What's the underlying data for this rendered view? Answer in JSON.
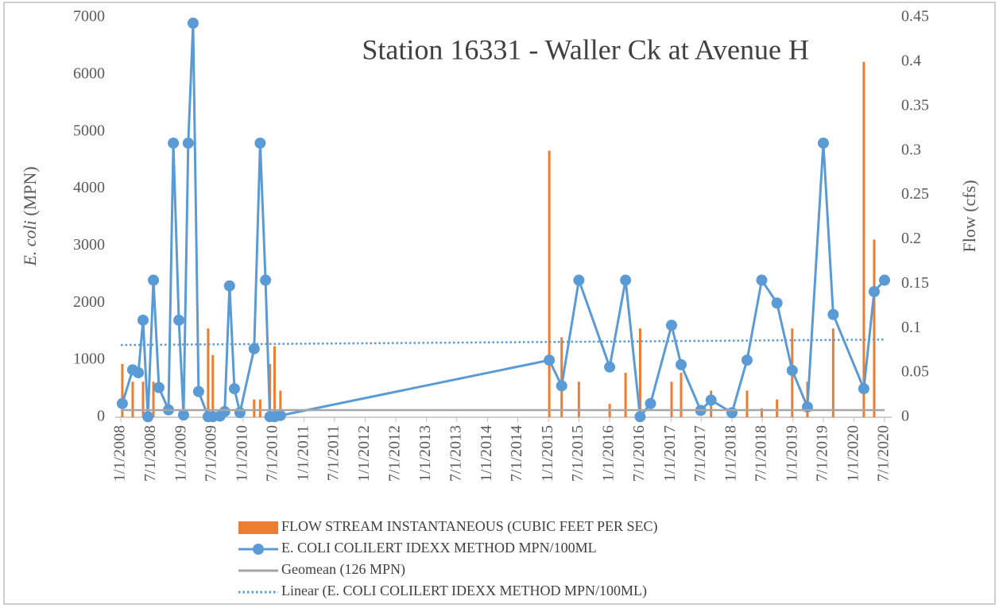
{
  "chart_data": {
    "type": "combo",
    "title": "Station 16331 - Waller Ck at Avenue H",
    "y_label": [
      "E. coli",
      "(MPN)"
    ],
    "y2_label": "Flow (cfs)",
    "xlim": [
      "2008-01-01",
      "2020-07-01"
    ],
    "xticks": [
      {
        "value": "2008-01-01",
        "label": "1/1/2008"
      },
      {
        "value": "2008-07-01",
        "label": "7/1/2008"
      },
      {
        "value": "2009-01-01",
        "label": "1/1/2009"
      },
      {
        "value": "2009-07-01",
        "label": "7/1/2009"
      },
      {
        "value": "2010-01-01",
        "label": "1/1/2010"
      },
      {
        "value": "2010-07-01",
        "label": "7/1/2010"
      },
      {
        "value": "2011-01-01",
        "label": "1/1/2011"
      },
      {
        "value": "2011-07-01",
        "label": "7/1/2011"
      },
      {
        "value": "2012-01-01",
        "label": "1/1/2012"
      },
      {
        "value": "2012-07-01",
        "label": "7/1/2012"
      },
      {
        "value": "2013-01-01",
        "label": "1/1/2013"
      },
      {
        "value": "2013-07-01",
        "label": "7/1/2013"
      },
      {
        "value": "2014-01-01",
        "label": "1/1/2014"
      },
      {
        "value": "2014-07-01",
        "label": "7/1/2014"
      },
      {
        "value": "2015-01-01",
        "label": "1/1/2015"
      },
      {
        "value": "2015-07-01",
        "label": "7/1/2015"
      },
      {
        "value": "2016-01-01",
        "label": "1/1/2016"
      },
      {
        "value": "2016-07-01",
        "label": "7/1/2016"
      },
      {
        "value": "2017-01-01",
        "label": "1/1/2017"
      },
      {
        "value": "2017-07-01",
        "label": "7/1/2017"
      },
      {
        "value": "2018-01-01",
        "label": "1/1/2018"
      },
      {
        "value": "2018-07-01",
        "label": "7/1/2018"
      },
      {
        "value": "2019-01-01",
        "label": "1/1/2019"
      },
      {
        "value": "2019-07-01",
        "label": "7/1/2019"
      },
      {
        "value": "2020-01-01",
        "label": "1/1/2020"
      },
      {
        "value": "2020-07-01",
        "label": "7/1/2020"
      }
    ],
    "ylim": [
      0,
      7000
    ],
    "yticks": [
      0,
      1000,
      2000,
      3000,
      4000,
      5000,
      6000,
      7000
    ],
    "y2lim": [
      0,
      0.45
    ],
    "y2ticks": [
      0,
      0.05,
      0.1,
      0.15,
      0.2,
      0.25,
      0.3,
      0.35,
      0.4,
      0.45
    ],
    "grid": false,
    "legend": "bottom",
    "series": [
      {
        "name": "FLOW STREAM INSTANTANEOUS (CUBIC FEET PER SEC)",
        "kind": "bar",
        "axis": "y2",
        "color": "#ed7d31",
        "x": [
          "2008-01-10",
          "2008-03-12",
          "2008-05-13",
          "2008-07-14",
          "2009-06-06",
          "2009-07-04",
          "2010-03-08",
          "2010-04-13",
          "2010-06-10",
          "2010-07-08",
          "2010-08-12",
          "2015-01-05",
          "2015-03-20",
          "2015-07-01",
          "2016-01-01",
          "2016-04-05",
          "2016-07-01",
          "2017-01-05",
          "2017-03-03",
          "2017-08-29",
          "2018-04-01",
          "2018-06-28",
          "2018-09-27",
          "2018-12-27",
          "2019-03-28",
          "2019-08-29",
          "2020-02-28",
          "2020-04-30"
        ],
        "values": [
          0.06,
          0.04,
          0.04,
          0.04,
          0.1,
          0.07,
          0.02,
          0.02,
          0.06,
          0.08,
          0.03,
          0.3,
          0.09,
          0.04,
          0.015,
          0.05,
          0.1,
          0.04,
          0.05,
          0.03,
          0.03,
          0.01,
          0.02,
          0.1,
          0.04,
          0.1,
          0.4,
          0.2
        ]
      },
      {
        "name": "E. COLI COLILERT IDEXX METHOD MPN/100ML",
        "kind": "line",
        "marker": "circle",
        "color": "#5b9bd5",
        "x": [
          "2008-01-10",
          "2008-03-12",
          "2008-04-15",
          "2008-05-13",
          "2008-06-11",
          "2008-07-14",
          "2008-08-16",
          "2008-10-12",
          "2008-11-10",
          "2008-12-13",
          "2009-01-10",
          "2009-02-07",
          "2009-03-08",
          "2009-04-10",
          "2009-06-06",
          "2009-07-04",
          "2009-08-16",
          "2009-09-13",
          "2009-10-12",
          "2009-11-10",
          "2009-12-13",
          "2010-03-08",
          "2010-04-13",
          "2010-05-15",
          "2010-06-10",
          "2010-07-08",
          "2010-08-12",
          "2015-01-05",
          "2015-03-20",
          "2015-07-01",
          "2016-01-01",
          "2016-04-05",
          "2016-07-01",
          "2016-09-01",
          "2017-01-05",
          "2017-03-03",
          "2017-06-28",
          "2017-08-29",
          "2018-01-01",
          "2018-04-01",
          "2018-06-28",
          "2018-09-27",
          "2018-12-27",
          "2019-03-28",
          "2019-07-01",
          "2019-08-29",
          "2020-02-28",
          "2020-04-30",
          "2020-07-01"
        ],
        "values": [
          240,
          830,
          780,
          1700,
          10,
          2400,
          520,
          130,
          4800,
          1700,
          40,
          4800,
          6900,
          450,
          10,
          10,
          20,
          100,
          2300,
          500,
          80,
          1200,
          4800,
          2400,
          10,
          10,
          30,
          1000,
          550,
          2400,
          880,
          2400,
          10,
          240,
          1610,
          920,
          120,
          300,
          80,
          1000,
          2400,
          2000,
          820,
          180,
          4800,
          1800,
          500,
          2200,
          2400
        ]
      },
      {
        "name": "Geomean (126 MPN)",
        "kind": "line",
        "color": "#a5a5a5",
        "x": [
          "2008-01-01",
          "2020-07-01"
        ],
        "values": [
          126,
          126
        ]
      },
      {
        "name": "Linear (E. COLI COLILERT IDEXX METHOD MPN/100ML)",
        "kind": "line",
        "dash": "dotted",
        "color": "#5b9bd5",
        "x": [
          "2008-01-01",
          "2020-07-01"
        ],
        "values": [
          1265,
          1360
        ]
      }
    ]
  }
}
